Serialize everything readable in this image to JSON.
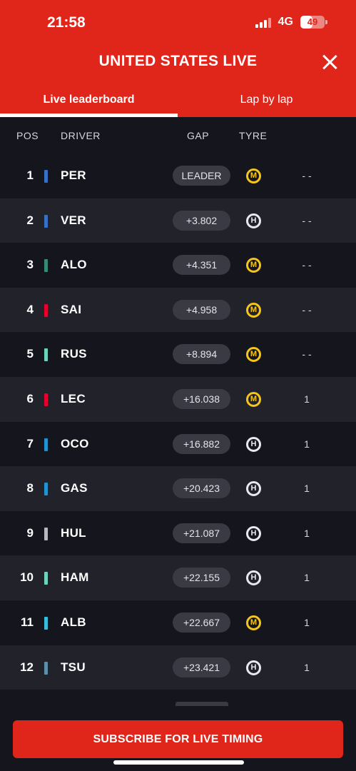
{
  "status_bar": {
    "time": "21:58",
    "network": "4G",
    "battery": "49",
    "battery_level": 0.49
  },
  "header": {
    "title": "UNITED STATES LIVE",
    "close_icon": "close-icon"
  },
  "tabs": [
    {
      "label": "Live leaderboard",
      "active": true
    },
    {
      "label": "Lap by lap",
      "active": false
    }
  ],
  "columns": {
    "pos": "POS",
    "driver": "DRIVER",
    "gap": "GAP",
    "tyre": "TYRE"
  },
  "rows": [
    {
      "pos": "1",
      "driver": "PER",
      "team_color": "#3671c6",
      "gap": "LEADER",
      "tyre": "M",
      "pits": "- -"
    },
    {
      "pos": "2",
      "driver": "VER",
      "team_color": "#3671c6",
      "gap": "+3.802",
      "tyre": "H",
      "pits": "- -"
    },
    {
      "pos": "3",
      "driver": "ALO",
      "team_color": "#358c75",
      "gap": "+4.351",
      "tyre": "M",
      "pits": "- -"
    },
    {
      "pos": "4",
      "driver": "SAI",
      "team_color": "#e8002d",
      "gap": "+4.958",
      "tyre": "M",
      "pits": "- -"
    },
    {
      "pos": "5",
      "driver": "RUS",
      "team_color": "#6cd3bf",
      "gap": "+8.894",
      "tyre": "M",
      "pits": "- -"
    },
    {
      "pos": "6",
      "driver": "LEC",
      "team_color": "#e8002d",
      "gap": "+16.038",
      "tyre": "M",
      "pits": "1"
    },
    {
      "pos": "7",
      "driver": "OCO",
      "team_color": "#2293d1",
      "gap": "+16.882",
      "tyre": "H",
      "pits": "1"
    },
    {
      "pos": "8",
      "driver": "GAS",
      "team_color": "#2293d1",
      "gap": "+20.423",
      "tyre": "H",
      "pits": "1"
    },
    {
      "pos": "9",
      "driver": "HUL",
      "team_color": "#b6babd",
      "gap": "+21.087",
      "tyre": "H",
      "pits": "1"
    },
    {
      "pos": "10",
      "driver": "HAM",
      "team_color": "#6cd3bf",
      "gap": "+22.155",
      "tyre": "H",
      "pits": "1"
    },
    {
      "pos": "11",
      "driver": "ALB",
      "team_color": "#37bedd",
      "gap": "+22.667",
      "tyre": "M",
      "pits": "1"
    },
    {
      "pos": "12",
      "driver": "TSU",
      "team_color": "#5e8faa",
      "gap": "+23.421",
      "tyre": "H",
      "pits": "1"
    }
  ],
  "footer": {
    "subscribe_label": "SUBSCRIBE FOR LIVE TIMING"
  }
}
